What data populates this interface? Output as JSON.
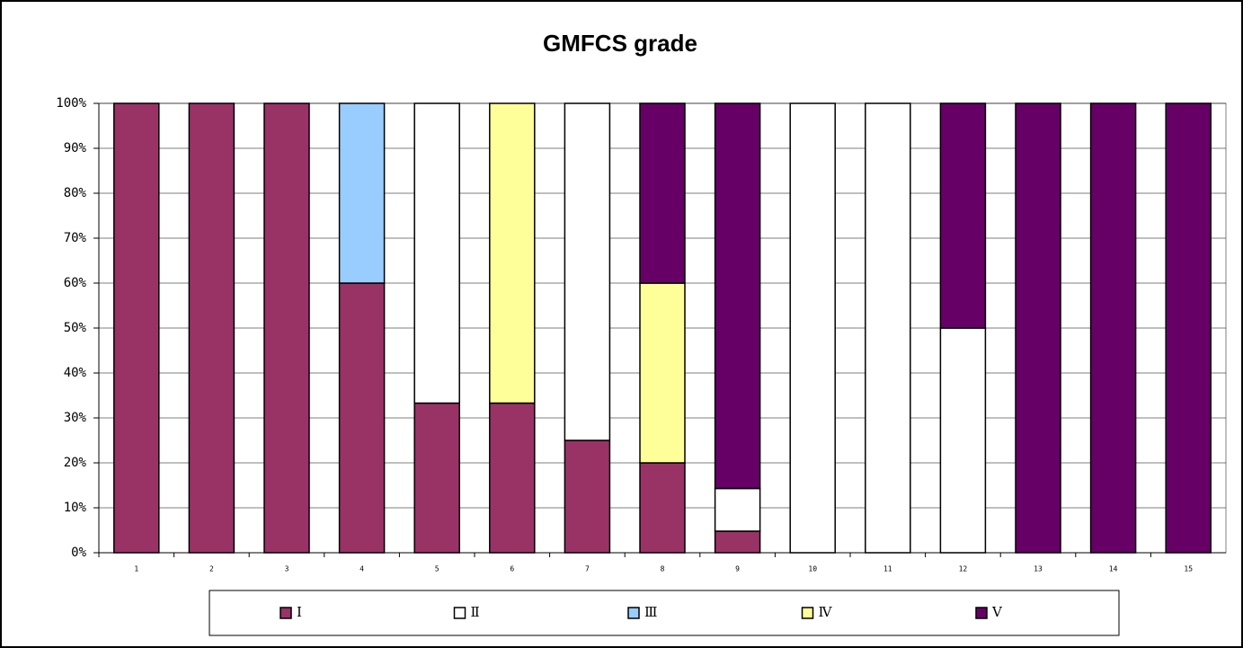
{
  "chart_data": {
    "type": "stacked_bar",
    "title": "GMFCS grade",
    "categories": [
      "1",
      "2",
      "3",
      "4",
      "5",
      "6",
      "7",
      "8",
      "9",
      "10",
      "11",
      "12",
      "13",
      "14",
      "15"
    ],
    "series": [
      {
        "name": "Ⅰ",
        "color": "#993366",
        "values": [
          100,
          100,
          100,
          60,
          33.3,
          33.3,
          25,
          20,
          4.8,
          0,
          0,
          0,
          0,
          0,
          0
        ]
      },
      {
        "name": "Ⅱ",
        "color": "#ffffff",
        "values": [
          0,
          0,
          0,
          0,
          66.7,
          0,
          75,
          0,
          9.5,
          100,
          100,
          50,
          0,
          0,
          0
        ]
      },
      {
        "name": "Ⅲ",
        "color": "#99ccff",
        "values": [
          0,
          0,
          0,
          40,
          0,
          0,
          0,
          0,
          0,
          0,
          0,
          0,
          0,
          0,
          0
        ]
      },
      {
        "name": "Ⅳ",
        "color": "#ffff99",
        "values": [
          0,
          0,
          0,
          0,
          0,
          66.7,
          0,
          40,
          0,
          0,
          0,
          0,
          0,
          0,
          0
        ]
      },
      {
        "name": "Ⅴ",
        "color": "#660066",
        "values": [
          0,
          0,
          0,
          0,
          0,
          0,
          0,
          40,
          85.7,
          0,
          0,
          50,
          100,
          100,
          100
        ]
      }
    ],
    "ylim": [
      0,
      100
    ],
    "yticks": [
      {
        "value": 0,
        "label": "0%"
      },
      {
        "value": 10,
        "label": "10%"
      },
      {
        "value": 20,
        "label": "20%"
      },
      {
        "value": 30,
        "label": "30%"
      },
      {
        "value": 40,
        "label": "40%"
      },
      {
        "value": 50,
        "label": "50%"
      },
      {
        "value": 60,
        "label": "60%"
      },
      {
        "value": 70,
        "label": "70%"
      },
      {
        "value": 80,
        "label": "80%"
      },
      {
        "value": 90,
        "label": "90%"
      },
      {
        "value": 100,
        "label": "100%"
      }
    ],
    "grid": true,
    "legend": "bottom"
  }
}
